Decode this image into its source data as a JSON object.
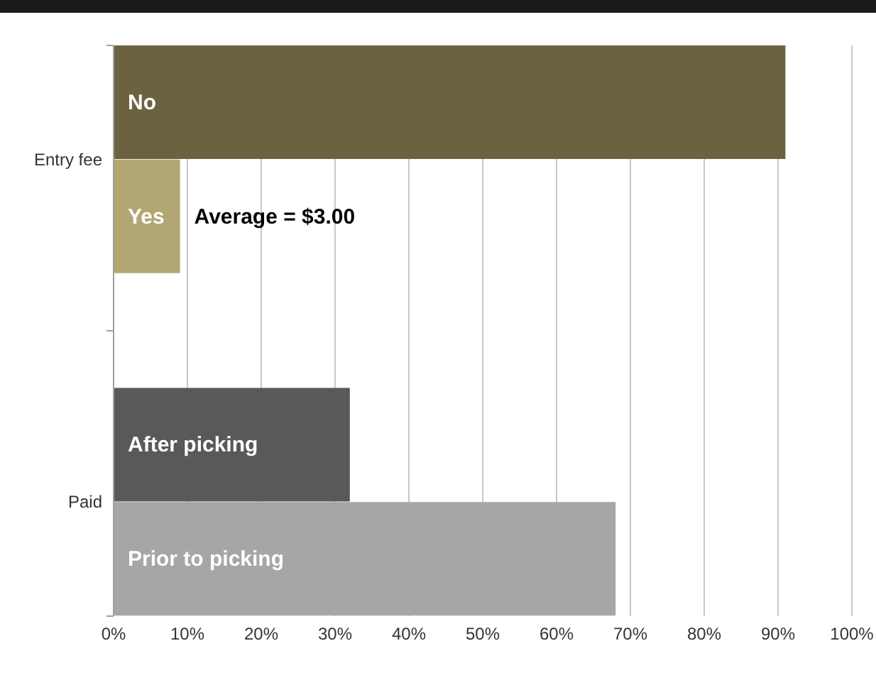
{
  "chart_data": {
    "type": "bar",
    "orientation": "horizontal",
    "categories": [
      "Entry fee",
      "Paid"
    ],
    "series": [
      {
        "name": "No",
        "color": "#6b6340",
        "values": [
          91,
          null
        ]
      },
      {
        "name": "Yes",
        "color": "#b2a772",
        "values": [
          9,
          null
        ]
      },
      {
        "name": "After picking",
        "color": "#595959",
        "values": [
          null,
          32
        ]
      },
      {
        "name": "Prior to picking",
        "color": "#a6a6a6",
        "values": [
          null,
          68
        ]
      }
    ],
    "annotations": [
      {
        "text": "Average = $3.00",
        "x": 9,
        "y": "Entry fee"
      }
    ],
    "xlim": [
      0,
      100
    ],
    "xticks": [
      {
        "value": 0,
        "label": "0%"
      },
      {
        "value": 10,
        "label": "10%"
      },
      {
        "value": 20,
        "label": "20%"
      },
      {
        "value": 30,
        "label": "30%"
      },
      {
        "value": 40,
        "label": "40%"
      },
      {
        "value": 50,
        "label": "50%"
      },
      {
        "value": 60,
        "label": "60%"
      },
      {
        "value": 70,
        "label": "70%"
      },
      {
        "value": 80,
        "label": "80%"
      },
      {
        "value": 90,
        "label": "90%"
      },
      {
        "value": 100,
        "label": "100%"
      }
    ],
    "grid": "x",
    "legend": false
  }
}
